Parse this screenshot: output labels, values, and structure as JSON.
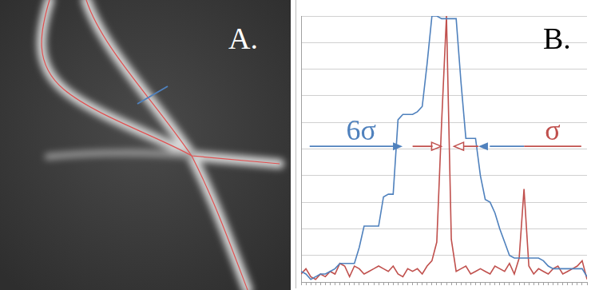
{
  "panel_labels": [
    "A.",
    "B."
  ],
  "chart_data": {
    "type": "line",
    "x": [
      1,
      2,
      3,
      4,
      5,
      6,
      7,
      8,
      9,
      10,
      11,
      12,
      13,
      14,
      15,
      16,
      17,
      18,
      19,
      20,
      21,
      22,
      23,
      24,
      25,
      26,
      27,
      28,
      29,
      30,
      31,
      32,
      33,
      34,
      35,
      36,
      37,
      38,
      39,
      40,
      41,
      42,
      43,
      44,
      45,
      46,
      47,
      48,
      49,
      50,
      51,
      52,
      53,
      54,
      55,
      56,
      57,
      58,
      59,
      60
    ],
    "series": [
      {
        "color": "#4f81bd",
        "values": [
          0.4,
          0.3,
          0.1,
          0.2,
          0.3,
          0.3,
          0.4,
          0.5,
          0.7,
          0.7,
          0.7,
          0.7,
          1.3,
          2.1,
          2.1,
          2.1,
          2.1,
          3.2,
          3.3,
          3.3,
          6.1,
          6.3,
          6.3,
          6.3,
          6.4,
          6.6,
          8.2,
          10.0,
          10.0,
          9.9,
          9.9,
          9.9,
          9.9,
          7.5,
          5.4,
          5.4,
          5.4,
          4.0,
          3.1,
          3.0,
          2.6,
          2.0,
          1.5,
          1.0,
          0.9,
          0.9,
          0.9,
          0.9,
          0.9,
          0.9,
          0.8,
          0.6,
          0.5,
          0.5,
          0.5,
          0.5,
          0.5,
          0.5,
          0.5,
          0.2
        ]
      },
      {
        "color": "#c0504d",
        "values": [
          0.3,
          0.5,
          0.2,
          0.1,
          0.3,
          0.2,
          0.4,
          0.3,
          0.7,
          0.6,
          0.2,
          0.6,
          0.5,
          0.3,
          0.4,
          0.5,
          0.6,
          0.5,
          0.4,
          0.6,
          0.3,
          0.2,
          0.5,
          0.4,
          0.5,
          0.3,
          0.6,
          0.8,
          1.5,
          6.0,
          10.0,
          1.6,
          0.4,
          0.5,
          0.6,
          0.3,
          0.4,
          0.5,
          0.4,
          0.3,
          0.6,
          0.5,
          0.4,
          0.7,
          0.3,
          0.9,
          3.5,
          0.6,
          0.3,
          0.5,
          0.4,
          0.3,
          0.5,
          0.6,
          0.3,
          0.4,
          0.5,
          0.6,
          0.8,
          0.1
        ]
      }
    ],
    "xlim": [
      1,
      60
    ],
    "xticks": [
      1,
      2,
      3,
      4,
      5,
      6,
      7,
      8,
      9,
      10,
      11,
      12,
      13,
      14,
      15,
      16,
      17,
      18,
      19,
      20,
      21,
      22,
      23,
      24,
      25,
      26,
      27,
      28,
      29,
      30,
      31,
      32,
      33,
      34,
      35,
      36,
      37,
      38,
      39,
      40,
      41,
      42,
      43,
      44,
      45,
      46,
      47,
      48,
      49,
      50,
      51,
      52,
      53,
      54,
      55,
      56,
      57,
      58,
      59,
      60
    ],
    "ylim": [
      0,
      10
    ],
    "yticks": [
      0,
      1,
      2,
      3,
      4,
      5,
      6,
      7,
      8,
      9,
      10
    ],
    "grid": true,
    "tick_labels": false,
    "annotations": [
      {
        "text": "6σ",
        "color": "#4f81bd"
      },
      {
        "text": "σ",
        "color": "#c0504d"
      }
    ]
  }
}
